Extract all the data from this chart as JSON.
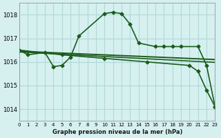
{
  "title": "Graphe pression niveau de la mer (hPa)",
  "background_color": "#d6f0f0",
  "grid_color": "#b0d8d8",
  "line_color": "#1a5c1a",
  "xlim": [
    0,
    23
  ],
  "ylim": [
    1013.5,
    1018.5
  ],
  "yticks": [
    1014,
    1015,
    1016,
    1017,
    1018
  ],
  "xtick_labels": [
    "0",
    "1",
    "2",
    "3",
    "4",
    "5",
    "6",
    "7",
    "8",
    "9",
    "10",
    "11",
    "12",
    "13",
    "14",
    "15",
    "16",
    "17",
    "18",
    "19",
    "20",
    "21",
    "22",
    "23"
  ],
  "lines": [
    {
      "x": [
        0,
        1,
        3,
        4,
        5,
        6,
        7,
        10,
        11,
        12,
        13,
        14,
        16,
        17,
        18,
        19,
        21,
        22,
        23
      ],
      "y": [
        1016.5,
        1016.3,
        1016.4,
        1015.8,
        1015.85,
        1016.2,
        1017.1,
        1018.05,
        1018.1,
        1018.05,
        1017.6,
        1016.8,
        1016.65,
        1016.65,
        1016.65,
        1016.65,
        1016.65,
        1015.85,
        1014.1
      ],
      "marker": "D",
      "markersize": 3,
      "linewidth": 1.2
    },
    {
      "x": [
        0,
        3,
        4,
        5,
        6,
        7,
        17,
        18,
        19,
        20
      ],
      "y": [
        1016.5,
        1016.4,
        1016.3,
        1016.3,
        1016.25,
        1016.25,
        1016.25,
        1016.2,
        1016.15,
        1016.1
      ],
      "marker": null,
      "markersize": 0,
      "linewidth": 1.5
    },
    {
      "x": [
        0,
        3,
        5,
        7,
        10,
        11,
        12,
        14,
        16,
        17,
        18,
        19,
        20
      ],
      "y": [
        1016.5,
        1016.4,
        1016.3,
        1016.25,
        1016.2,
        1016.2,
        1016.15,
        1016.1,
        1016.05,
        1016.0,
        1015.95,
        1015.9,
        1015.85
      ],
      "marker": null,
      "markersize": 0,
      "linewidth": 1.2
    },
    {
      "x": [
        0,
        5,
        10,
        15,
        20,
        21,
        22,
        23
      ],
      "y": [
        1016.5,
        1016.3,
        1016.15,
        1016.0,
        1015.85,
        1015.6,
        1014.8,
        1014.1
      ],
      "marker": "D",
      "markersize": 3,
      "linewidth": 1.2
    }
  ]
}
